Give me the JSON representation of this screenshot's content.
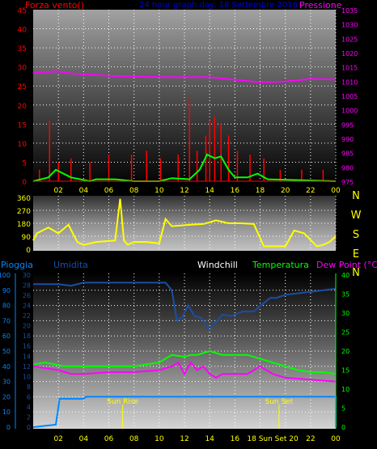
{
  "chart_data": [
    {
      "type": "line",
      "title": "24 hour graph day: 18 Settembre 2016",
      "left_label": "Forza vento()",
      "right_label": "Pressione",
      "left_ticks": [
        "45",
        "40",
        "35",
        "30",
        "25",
        "20",
        "15",
        "10",
        "5",
        "0"
      ],
      "right_ticks": [
        "1035",
        "1030",
        "1025",
        "1020",
        "1015",
        "1010",
        "1005",
        "1000",
        "995",
        "990",
        "985",
        "980",
        "975"
      ],
      "x_ticks": [
        "02",
        "04",
        "06",
        "08",
        "10",
        "12",
        "14",
        "16",
        "18",
        "20",
        "22",
        "00"
      ],
      "ylim_left": [
        0,
        45
      ],
      "ylim_right": [
        975,
        1035
      ],
      "pressure_hours": [
        0,
        2,
        3,
        6,
        10,
        14,
        18,
        20,
        22,
        24
      ],
      "pressure_values": [
        1013.0,
        1013.4,
        1012.7,
        1011.9,
        1011.4,
        1011.4,
        1009.6,
        1009.9,
        1010.8,
        1010.6
      ],
      "gust_hours": [
        0.5,
        1.3,
        2.0,
        3.0,
        4.5,
        6.0,
        7.8,
        9.0,
        10.1,
        11.5,
        12.4,
        13.0,
        13.7,
        14.0,
        14.4,
        14.9,
        15.5,
        16.2,
        17.2,
        18.3,
        19.6,
        21.3,
        23.0
      ],
      "gust_values": [
        3,
        16,
        5,
        6,
        5,
        7,
        7,
        8,
        6,
        7,
        22,
        8,
        12,
        16,
        17,
        15,
        12,
        8,
        7,
        6,
        3,
        3,
        3
      ],
      "avg_hours": [
        0,
        1.2,
        1.8,
        3.0,
        4.5,
        5.0,
        6.5,
        8.0,
        10.0,
        11.0,
        12.4,
        13.2,
        13.8,
        14.4,
        14.9,
        15.5,
        16.0,
        17.0,
        17.8,
        18.6,
        24
      ],
      "avg_values": [
        0,
        1,
        3,
        1,
        0,
        0.5,
        0.5,
        0,
        0,
        0.8,
        0.5,
        3,
        7,
        6,
        6.5,
        3,
        1,
        1,
        2,
        0.5,
        0
      ]
    },
    {
      "type": "line",
      "left_ticks": [
        "360",
        "270",
        "180",
        "90",
        "0"
      ],
      "right_letters": [
        "N",
        "W",
        "S",
        "E",
        "N"
      ],
      "ylim": [
        0,
        360
      ],
      "direction_hours": [
        0,
        0.3,
        1.2,
        2.0,
        2.8,
        3.5,
        4.0,
        5.0,
        6.5,
        6.9,
        7.2,
        7.5,
        8.0,
        9.0,
        10.0,
        10.5,
        11.0,
        12.5,
        13.5,
        14.5,
        15.5,
        16.5,
        17.5,
        18.3,
        19.5,
        20.0,
        20.7,
        21.5,
        22.5,
        23.0,
        23.5,
        24.0
      ],
      "direction_values": [
        60,
        110,
        150,
        110,
        170,
        50,
        30,
        50,
        60,
        350,
        60,
        30,
        50,
        50,
        40,
        210,
        160,
        170,
        175,
        200,
        180,
        180,
        175,
        20,
        20,
        20,
        130,
        110,
        20,
        30,
        50,
        90
      ]
    },
    {
      "type": "line",
      "labels": {
        "rain": "Pioggia",
        "humidity": "Umidita",
        "windchill": "Windchill",
        "temperature": "Temperatura",
        "dewpoint": "Dew Point (°C)"
      },
      "left_ticks": [
        "100",
        "90",
        "80",
        "70",
        "60",
        "50",
        "40",
        "30",
        "20",
        "10",
        "0"
      ],
      "inner_ticks": [
        "30",
        "28",
        "26",
        "24",
        "22",
        "20",
        "18",
        "16",
        "14",
        "12",
        "10",
        "8",
        "6",
        "4",
        "2",
        "0"
      ],
      "right_ticks": [
        "40",
        "35",
        "30",
        "25",
        "20",
        "15",
        "10",
        "5",
        "0"
      ],
      "x_ticks": [
        "02",
        "04",
        "06",
        "08",
        "10",
        "12",
        "14",
        "16",
        "18 Sun Set 20",
        "22",
        "00"
      ],
      "sun_rise": "Sun Rise",
      "sun_set": "Sun Set",
      "sun_rise_hour": 7.1,
      "sun_set_hour": 19.5,
      "ylim_humidity": [
        0,
        100
      ],
      "ylim_temp": [
        0,
        40
      ],
      "ylim_rain": [
        0,
        30
      ],
      "rain_hours": [
        0,
        1.8,
        2.1,
        4.0,
        4.2,
        24,
        24
      ],
      "rain_values": [
        0,
        0.5,
        5.6,
        5.6,
        6.0,
        6.0,
        0
      ],
      "humidity_hours": [
        0,
        2.0,
        3.0,
        4.0,
        5.0,
        10.5,
        11.0,
        11.4,
        11.8,
        12.3,
        12.8,
        13.3,
        13.9,
        14.4,
        15.0,
        15.7,
        16.6,
        17.5,
        18.2,
        18.8,
        19.3,
        20.0,
        21.0,
        22.0,
        24
      ],
      "humidity_values": [
        94,
        94,
        93,
        95,
        95,
        95,
        90,
        70,
        72,
        80,
        73,
        72,
        65,
        68,
        74,
        73,
        76,
        76,
        81,
        85,
        85,
        87,
        88,
        89,
        91
      ],
      "temperature_hours": [
        0,
        1.0,
        2.5,
        4.0,
        6.0,
        8.0,
        10.0,
        11.0,
        12.0,
        12.5,
        13.0,
        14.0,
        15.0,
        16.0,
        17.0,
        18.0,
        19.0,
        20.0,
        21.0,
        22.0,
        23.0,
        24
      ],
      "temperature_values": [
        16.5,
        17,
        16,
        16,
        16,
        16,
        17,
        19,
        18.5,
        19,
        19,
        20,
        19,
        19,
        19,
        18,
        17,
        16,
        15,
        14.5,
        14.5,
        14
      ],
      "dewpoint_hours": [
        0,
        2.0,
        3.0,
        4.0,
        6.0,
        8.0,
        10.0,
        11.0,
        11.5,
        12.0,
        12.5,
        13.0,
        13.5,
        14.0,
        14.5,
        15.0,
        16.0,
        17.0,
        18.0,
        19.0,
        20.0,
        22.0,
        24
      ],
      "dewpoint_values": [
        16,
        15,
        14,
        14,
        14.5,
        14.5,
        15,
        16,
        17,
        14,
        17,
        15,
        16,
        14,
        13,
        14,
        14,
        14,
        16,
        14,
        13,
        12.5,
        12
      ]
    }
  ]
}
